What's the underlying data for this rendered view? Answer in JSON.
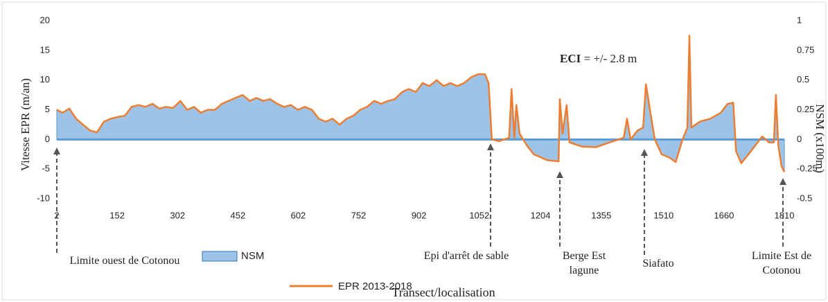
{
  "chart_data": {
    "type": "area_line",
    "x": [
      2,
      16,
      33,
      50,
      67,
      85,
      102,
      119,
      136,
      154,
      171,
      188,
      205,
      222,
      240,
      257,
      274,
      291,
      309,
      326,
      343,
      360,
      377,
      395,
      412,
      429,
      446,
      464,
      481,
      498,
      515,
      532,
      550,
      567,
      584,
      601,
      618,
      636,
      653,
      670,
      687,
      705,
      722,
      739,
      756,
      773,
      791,
      808,
      825,
      842,
      860,
      877,
      894,
      911,
      928,
      946,
      963,
      980,
      997,
      1014,
      1032,
      1049,
      1066,
      1075,
      1083,
      1101,
      1126,
      1132,
      1139,
      1144,
      1152,
      1170,
      1187,
      1221,
      1249,
      1252,
      1259,
      1269,
      1276,
      1307,
      1342,
      1376,
      1411,
      1419,
      1428,
      1445,
      1459,
      1466,
      1476,
      1488,
      1505,
      1523,
      1540,
      1557,
      1569,
      1574,
      1579,
      1600,
      1626,
      1652,
      1669,
      1683,
      1690,
      1703,
      1721,
      1738,
      1755,
      1772,
      1784,
      1789,
      1795,
      1803,
      1810
    ],
    "series": [
      {
        "name": "NSM",
        "color": "#9dc3e6",
        "axis": "y2",
        "values": [
          0.25,
          0.225,
          0.26,
          0.175,
          0.125,
          0.075,
          0.06,
          0.15,
          0.175,
          0.19,
          0.2,
          0.275,
          0.29,
          0.275,
          0.3,
          0.26,
          0.275,
          0.265,
          0.325,
          0.25,
          0.275,
          0.225,
          0.25,
          0.25,
          0.3,
          0.325,
          0.35,
          0.375,
          0.325,
          0.35,
          0.325,
          0.34,
          0.3,
          0.275,
          0.29,
          0.25,
          0.275,
          0.25,
          0.175,
          0.15,
          0.175,
          0.125,
          0.175,
          0.2,
          0.25,
          0.275,
          0.325,
          0.3,
          0.325,
          0.34,
          0.4,
          0.425,
          0.4,
          0.475,
          0.45,
          0.5,
          0.45,
          0.475,
          0.45,
          0.475,
          0.525,
          0.55,
          0.55,
          0.475,
          0,
          -0.015,
          0.015,
          0.425,
          0.015,
          0.29,
          0.05,
          -0.05,
          -0.125,
          -0.175,
          -0.185,
          0.34,
          0.05,
          0.29,
          -0.025,
          -0.06,
          -0.065,
          -0.025,
          0.015,
          0.175,
          0,
          0.075,
          0.1,
          0.465,
          0.25,
          0,
          -0.125,
          -0.15,
          -0.19,
          0,
          0.1,
          0.875,
          0.1,
          0.15,
          0.175,
          0.225,
          0.3,
          0.31,
          -0.1,
          -0.2,
          -0.125,
          -0.05,
          0.025,
          -0.025,
          -0.025,
          0.375,
          -0.05,
          -0.225,
          -0.275
        ]
      },
      {
        "name": "EPR 2013-2018",
        "color": "#ed7d31",
        "values": [
          5,
          4.5,
          5.2,
          3.5,
          2.5,
          1.5,
          1.2,
          3,
          3.5,
          3.8,
          4,
          5.5,
          5.8,
          5.5,
          6,
          5.2,
          5.5,
          5.3,
          6.5,
          5,
          5.5,
          4.5,
          5,
          5,
          6,
          6.5,
          7,
          7.5,
          6.5,
          7,
          6.5,
          6.8,
          6,
          5.5,
          5.8,
          5,
          5.5,
          5,
          3.5,
          3,
          3.5,
          2.5,
          3.5,
          4,
          5,
          5.5,
          6.5,
          6,
          6.5,
          6.8,
          8,
          8.5,
          8,
          9.5,
          9,
          10,
          9,
          9.5,
          9,
          9.5,
          10.5,
          11,
          11,
          9.5,
          0,
          -0.3,
          0.3,
          8.5,
          0.3,
          5.8,
          1,
          -1,
          -2.5,
          -3.5,
          -3.7,
          6.8,
          1,
          5.8,
          -0.5,
          -1.2,
          -1.3,
          -0.5,
          0.3,
          3.5,
          0,
          1.5,
          2,
          9.3,
          5,
          0,
          -2.5,
          -3,
          -3.8,
          0,
          2,
          17.5,
          2,
          3,
          3.5,
          4.5,
          6,
          6.2,
          -2,
          -4,
          -2.5,
          -1,
          0.5,
          -0.5,
          -0.5,
          7.5,
          -1,
          -4.5,
          -5.5
        ]
      }
    ],
    "xlim": [
      2,
      1810
    ],
    "xticks": [
      2,
      152,
      302,
      452,
      602,
      752,
      902,
      1052,
      1204,
      1355,
      1510,
      1660,
      1810
    ],
    "ylim": [
      -10,
      20
    ],
    "yticks": [
      -10,
      -5,
      0,
      5,
      10,
      15,
      20
    ],
    "y2lim": [
      -0.5,
      1
    ],
    "y2ticks": [
      -0.5,
      -0.25,
      0,
      0.25,
      0.5,
      0.75,
      1
    ],
    "ylabel": "Vitesse EPR (m/an)",
    "y2label": "NSM (x100m)",
    "xlabel": "Transect/localisation",
    "annotation": {
      "bold": "ECI",
      "text": " = +/- 2.8 m"
    },
    "locations": [
      [
        "Limite ouest de Cotonou"
      ],
      [
        "Epi d'arrêt de sable"
      ],
      [
        "Berge Est",
        "lagune"
      ],
      [
        "Siafato"
      ],
      [
        "Limite Est de",
        "Cotonou"
      ]
    ]
  }
}
